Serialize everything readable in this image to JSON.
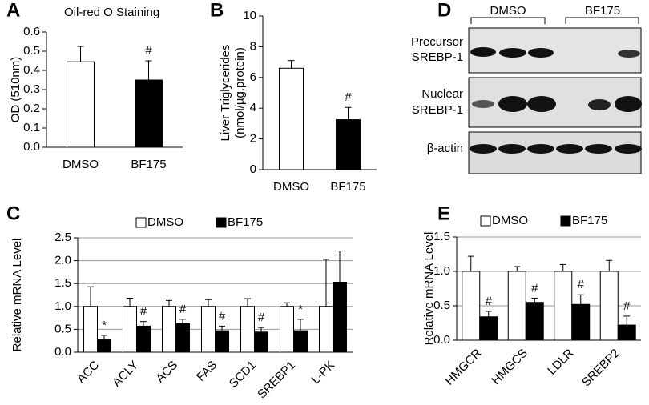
{
  "chart_data": [
    {
      "type": "bar",
      "label": "A",
      "title": "Oil-red O Staining",
      "ylabel": "OD (510nm)",
      "categories": [
        "DMSO",
        "BF175"
      ],
      "values": [
        0.445,
        0.35
      ],
      "errors": [
        0.08,
        0.1
      ],
      "colors": [
        "#ffffff",
        "#000000"
      ],
      "annotations": [
        null,
        "#"
      ],
      "ylim": [
        0,
        0.6
      ],
      "yticks": [
        {
          "value": 0,
          "label": "0.0"
        },
        0.1,
        0.2,
        0.3,
        0.4,
        0.5,
        0.6
      ],
      "grid": false
    },
    {
      "type": "bar",
      "label": "B",
      "ylabel": [
        "Liver Triglycerides",
        "(nmol/µg.protein)"
      ],
      "categories": [
        "DMSO",
        "BF175"
      ],
      "values": [
        6.6,
        3.25
      ],
      "errors": [
        0.5,
        0.8
      ],
      "colors": [
        "#ffffff",
        "#000000"
      ],
      "annotations": [
        null,
        "#"
      ],
      "ylim": [
        0,
        10
      ],
      "yticks": [
        0,
        2,
        4,
        6,
        8,
        10
      ],
      "grid": false
    },
    {
      "type": "bar",
      "label": "C",
      "ylabel": "Relative mRNA Level",
      "categories": [
        "ACC",
        "ACLY",
        "ACS",
        "FAS",
        "SCD1",
        "SREBP1",
        "L-PK"
      ],
      "series": [
        {
          "name": "DMSO",
          "color": "#ffffff",
          "values": [
            1,
            1,
            1,
            1,
            1,
            1,
            1
          ],
          "errors": [
            0.43,
            0.18,
            0.13,
            0.15,
            0.17,
            0.08,
            1.03
          ]
        },
        {
          "name": "BF175",
          "color": "#000000",
          "values": [
            0.27,
            0.57,
            0.62,
            0.47,
            0.44,
            0.47,
            1.53
          ],
          "errors": [
            0.1,
            0.1,
            0.1,
            0.1,
            0.1,
            0.25,
            0.68
          ],
          "annotations": [
            "*",
            "#",
            "#",
            "#",
            "#",
            "*",
            null
          ]
        }
      ],
      "ylim": [
        0,
        2.5
      ],
      "yticks": [
        {
          "value": 0,
          "label": "0.0"
        },
        0.5,
        {
          "value": 1,
          "label": "1.0"
        },
        1.5,
        {
          "value": 2,
          "label": "2.0"
        },
        2.5
      ],
      "grid": true
    },
    {
      "type": "bar",
      "label": "E",
      "ylabel": "Relative mRNA Level",
      "categories": [
        "HMGCR",
        "HMGCS",
        "LDLR",
        "SREBP2"
      ],
      "series": [
        {
          "name": "DMSO",
          "color": "#ffffff",
          "values": [
            1,
            1,
            1,
            1
          ],
          "errors": [
            0.22,
            0.07,
            0.1,
            0.16
          ]
        },
        {
          "name": "BF175",
          "color": "#000000",
          "values": [
            0.34,
            0.55,
            0.52,
            0.22
          ],
          "errors": [
            0.08,
            0.06,
            0.14,
            0.13
          ],
          "annotations": [
            "#",
            "#",
            "#",
            "#"
          ]
        }
      ],
      "ylim": [
        0,
        1.5
      ],
      "yticks": [
        {
          "value": 0,
          "label": "0.0"
        },
        0.5,
        {
          "value": 1,
          "label": "1.0"
        },
        1.5
      ],
      "grid": true
    }
  ],
  "blot": {
    "label": "D",
    "groups": [
      "DMSO",
      "BF175"
    ],
    "rows": [
      [
        "Precursor",
        "SREBP-1"
      ],
      [
        "Nuclear",
        "SREBP-1"
      ],
      [
        "β-actin"
      ]
    ]
  }
}
